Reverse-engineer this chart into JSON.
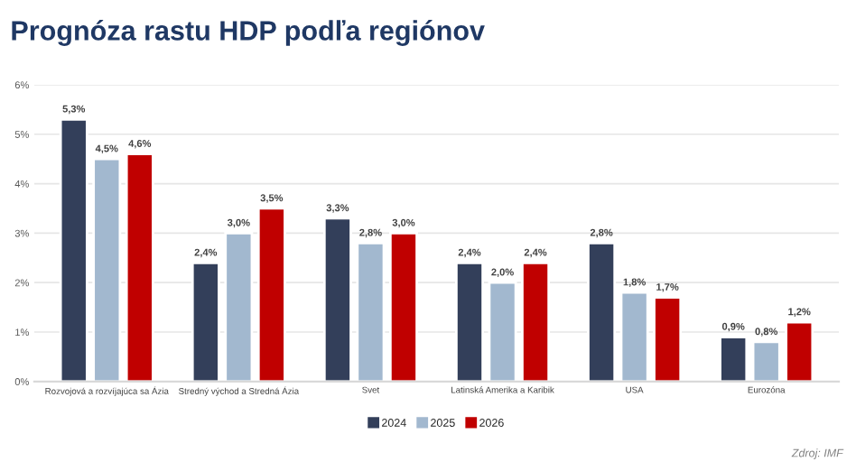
{
  "chart_data": {
    "type": "bar",
    "title": "Prognóza rastu HDP podľa regiónov",
    "categories": [
      "Rozvojová a rozvíjajúca sa Ázia",
      "Stredný východ a Stredná Ázia",
      "Svet",
      "Latinská Amerika a Karibik",
      "USA",
      "Eurozóna"
    ],
    "series": [
      {
        "name": "2024",
        "color": "#333f5a",
        "values": [
          5.3,
          2.4,
          3.3,
          2.4,
          2.8,
          0.9
        ],
        "value_labels": [
          "5,3%",
          "2,4%",
          "3,3%",
          "2,4%",
          "2,8%",
          "0,9%"
        ]
      },
      {
        "name": "2025",
        "color": "#a2b8cf",
        "values": [
          4.5,
          3.0,
          2.8,
          2.0,
          1.8,
          0.8
        ],
        "value_labels": [
          "4,5%",
          "3,0%",
          "2,8%",
          "2,0%",
          "1,8%",
          "0,8%"
        ]
      },
      {
        "name": "2026",
        "color": "#c00000",
        "values": [
          4.6,
          3.5,
          3.0,
          2.4,
          1.7,
          1.2
        ],
        "value_labels": [
          "4,6%",
          "3,5%",
          "3,0%",
          "2,4%",
          "1,7%",
          "1,2%"
        ]
      }
    ],
    "ylim": [
      0,
      6
    ],
    "yticks": [
      {
        "value": 0,
        "label": "0%"
      },
      {
        "value": 1,
        "label": "1%"
      },
      {
        "value": 2,
        "label": "2%"
      },
      {
        "value": 3,
        "label": "3%"
      },
      {
        "value": 4,
        "label": "4%"
      },
      {
        "value": 5,
        "label": "5%"
      },
      {
        "value": 6,
        "label": "6%"
      }
    ],
    "grid": "y",
    "legend": "bottom",
    "annotations": [
      "Zdroj: IMF"
    ]
  }
}
